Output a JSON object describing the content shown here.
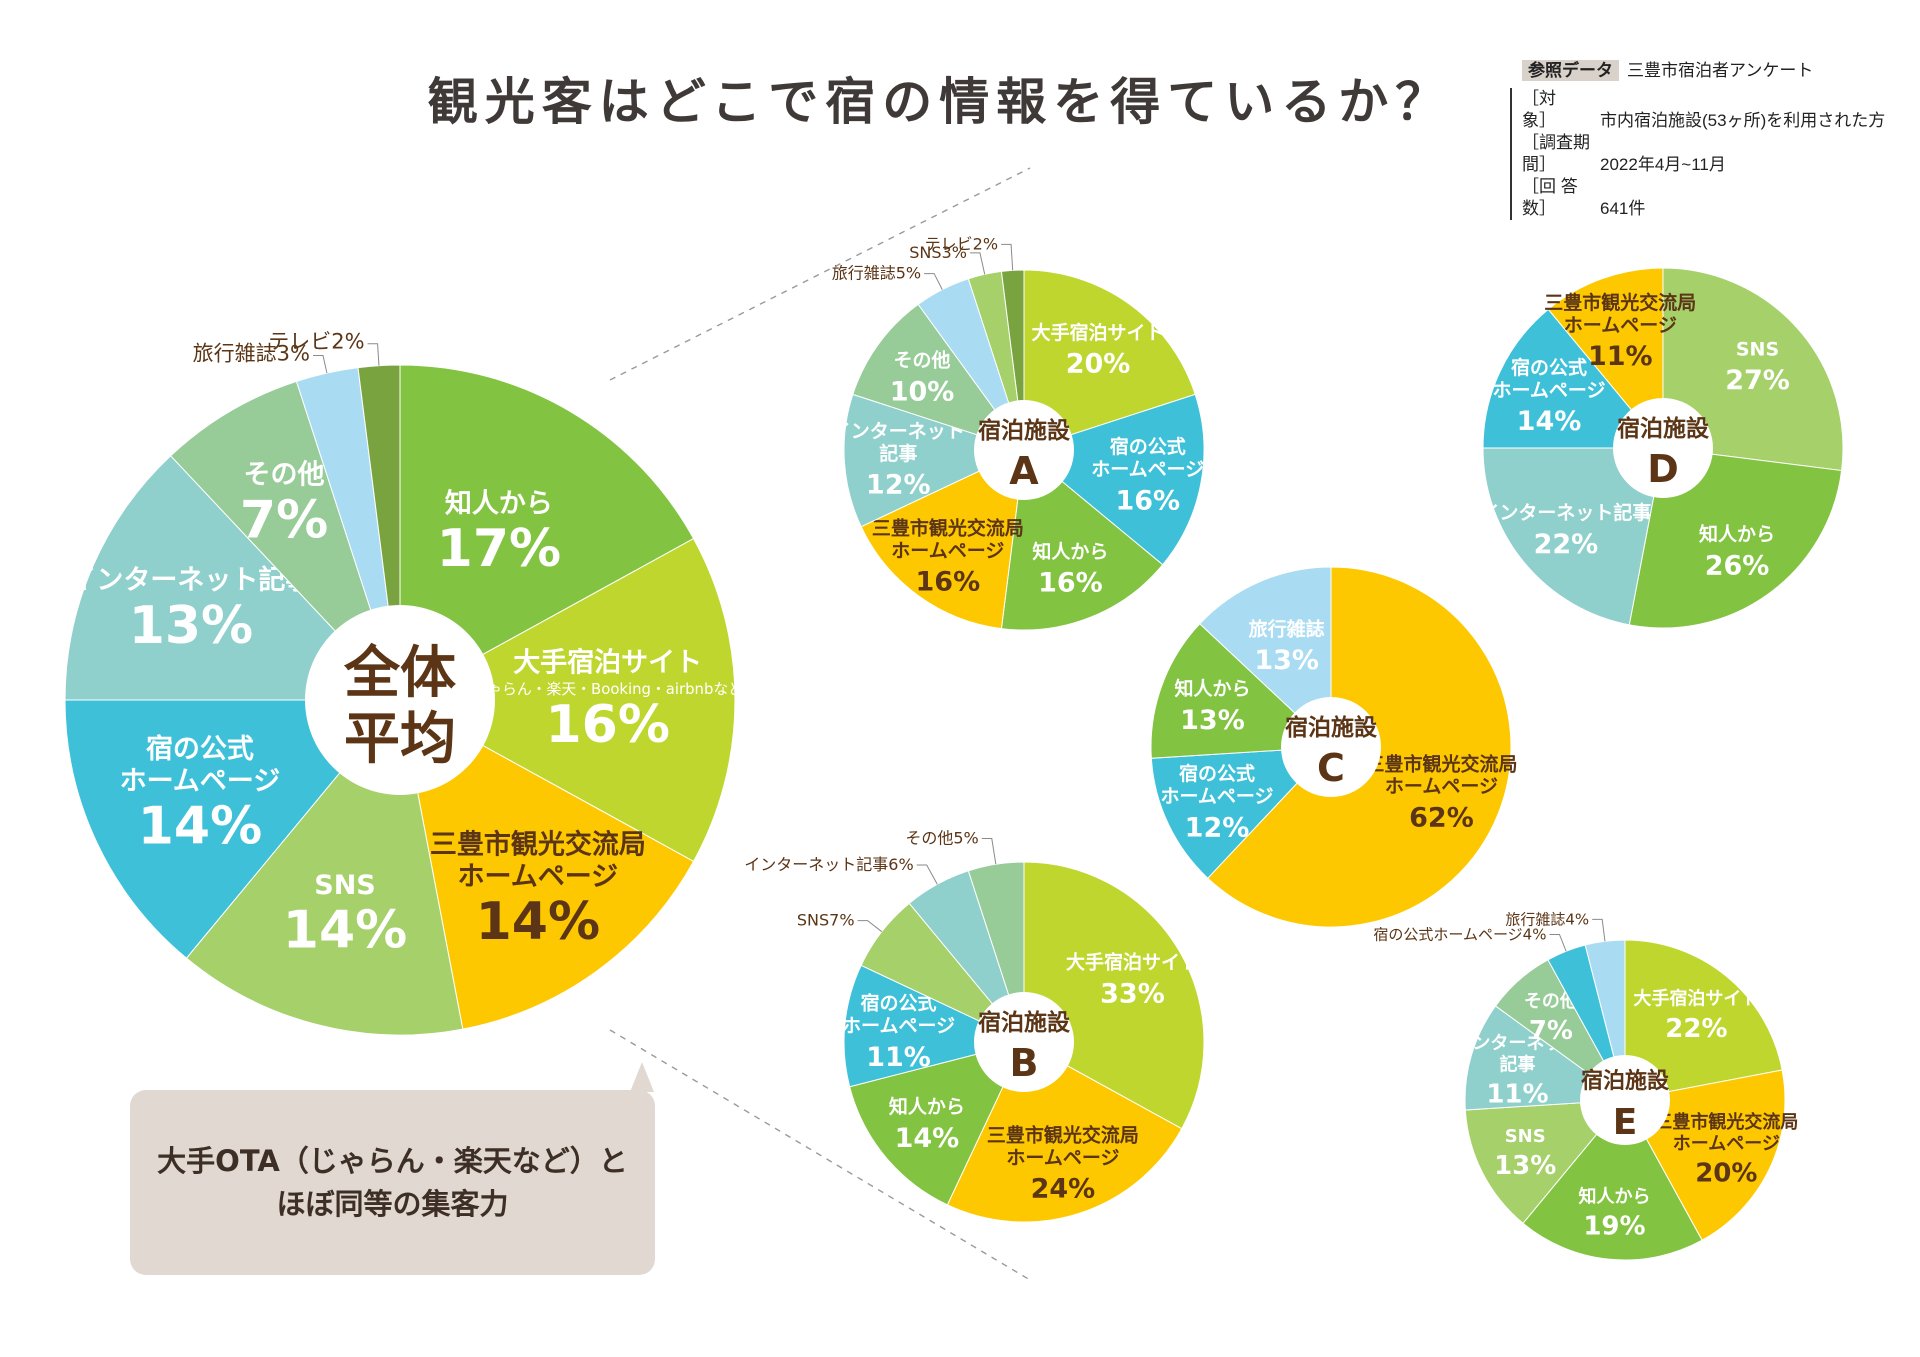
{
  "title": "観光客はどこで宿の情報を得ているか？",
  "source": {
    "tag": "参照データ",
    "name": "三豊市宿泊者アンケート",
    "rows": [
      {
        "label": "［対　　象］",
        "value": "市内宿泊施設(53ヶ所)を利用された方"
      },
      {
        "label": "［調査期間］",
        "value": "2022年4月~11月"
      },
      {
        "label": "［回 答 数］",
        "value": "641件"
      }
    ]
  },
  "callout": {
    "line1": "大手OTA（じゃらん・楽天など）と",
    "line2": "ほぼ同等の集客力"
  },
  "colors": {
    "知人から": "#82c341",
    "大手宿泊サイト": "#bfd62f",
    "三豊市観光交流局ホームページ": "#fdc800",
    "SNS": "#a5d06a",
    "宿の公式ホームページ": "#3ec1d8",
    "インターネット記事": "#8fd0cc",
    "その他": "#97cc98",
    "旅行雑誌": "#a9dcf2",
    "テレビ": "#79a33f"
  },
  "chart_data": [
    {
      "type": "pie",
      "id": "overall",
      "center_label": [
        "全体",
        "平均"
      ],
      "slices": [
        {
          "key": "知人から",
          "label": [
            "知人から"
          ],
          "value": 17
        },
        {
          "key": "大手宿泊サイト",
          "label": [
            "大手宿泊サイト"
          ],
          "sub": "じゃらん・楽天・Booking・airbnbなど",
          "value": 16
        },
        {
          "key": "三豊市観光交流局ホームページ",
          "label": [
            "三豊市観光交流局",
            "ホームページ"
          ],
          "value": 14
        },
        {
          "key": "SNS",
          "label": [
            "SNS"
          ],
          "value": 14
        },
        {
          "key": "宿の公式ホームページ",
          "label": [
            "宿の公式",
            "ホームページ"
          ],
          "value": 14
        },
        {
          "key": "インターネット記事",
          "label": [
            "インターネット記事"
          ],
          "value": 13
        },
        {
          "key": "その他",
          "label": [
            "その他"
          ],
          "value": 7
        },
        {
          "key": "旅行雑誌",
          "label": [
            "旅行雑誌"
          ],
          "value": 3
        },
        {
          "key": "テレビ",
          "label": [
            "テレビ"
          ],
          "value": 2
        }
      ]
    },
    {
      "type": "pie",
      "id": "A",
      "center_label": [
        "宿泊施設",
        "A"
      ],
      "slices": [
        {
          "key": "大手宿泊サイト",
          "label": [
            "大手宿泊サイト"
          ],
          "value": 20
        },
        {
          "key": "宿の公式ホームページ",
          "label": [
            "宿の公式",
            "ホームページ"
          ],
          "value": 16
        },
        {
          "key": "知人から",
          "label": [
            "知人から"
          ],
          "value": 16
        },
        {
          "key": "三豊市観光交流局ホームページ",
          "label": [
            "三豊市観光交流局",
            "ホームページ"
          ],
          "value": 16
        },
        {
          "key": "インターネット記事",
          "label": [
            "インターネット",
            "記事"
          ],
          "value": 12
        },
        {
          "key": "その他",
          "label": [
            "その他"
          ],
          "value": 10
        },
        {
          "key": "旅行雑誌",
          "label": [
            "旅行雑誌"
          ],
          "value": 5
        },
        {
          "key": "SNS",
          "label": [
            "SNS"
          ],
          "value": 3
        },
        {
          "key": "テレビ",
          "label": [
            "テレビ"
          ],
          "value": 2
        }
      ]
    },
    {
      "type": "pie",
      "id": "B",
      "center_label": [
        "宿泊施設",
        "B"
      ],
      "slices": [
        {
          "key": "大手宿泊サイト",
          "label": [
            "大手宿泊サイト"
          ],
          "value": 33
        },
        {
          "key": "三豊市観光交流局ホームページ",
          "label": [
            "三豊市観光交流局",
            "ホームページ"
          ],
          "value": 24
        },
        {
          "key": "知人から",
          "label": [
            "知人から"
          ],
          "value": 14
        },
        {
          "key": "宿の公式ホームページ",
          "label": [
            "宿の公式",
            "ホームページ"
          ],
          "value": 11
        },
        {
          "key": "SNS",
          "label": [
            "SNS"
          ],
          "value": 7
        },
        {
          "key": "インターネット記事",
          "label": [
            "インターネット記事"
          ],
          "value": 6
        },
        {
          "key": "その他",
          "label": [
            "その他"
          ],
          "value": 5
        }
      ]
    },
    {
      "type": "pie",
      "id": "C",
      "center_label": [
        "宿泊施設",
        "C"
      ],
      "slices": [
        {
          "key": "三豊市観光交流局ホームページ",
          "label": [
            "三豊市観光交流局",
            "ホームページ"
          ],
          "value": 62
        },
        {
          "key": "宿の公式ホームページ",
          "label": [
            "宿の公式",
            "ホームページ"
          ],
          "value": 12
        },
        {
          "key": "知人から",
          "label": [
            "知人から"
          ],
          "value": 13
        },
        {
          "key": "旅行雑誌",
          "label": [
            "旅行雑誌"
          ],
          "value": 13
        }
      ]
    },
    {
      "type": "pie",
      "id": "D",
      "center_label": [
        "宿泊施設",
        "D"
      ],
      "slices": [
        {
          "key": "SNS",
          "label": [
            "SNS"
          ],
          "value": 27
        },
        {
          "key": "知人から",
          "label": [
            "知人から"
          ],
          "value": 26
        },
        {
          "key": "インターネット記事",
          "label": [
            "インターネット記事"
          ],
          "value": 22
        },
        {
          "key": "宿の公式ホームページ",
          "label": [
            "宿の公式",
            "ホームページ"
          ],
          "value": 14
        },
        {
          "key": "三豊市観光交流局ホームページ",
          "label": [
            "三豊市観光交流局",
            "ホームページ"
          ],
          "value": 11
        }
      ]
    },
    {
      "type": "pie",
      "id": "E",
      "center_label": [
        "宿泊施設",
        "E"
      ],
      "slices": [
        {
          "key": "大手宿泊サイト",
          "label": [
            "大手宿泊サイト"
          ],
          "value": 22
        },
        {
          "key": "三豊市観光交流局ホームページ",
          "label": [
            "三豊市観光交流局",
            "ホームページ"
          ],
          "value": 20
        },
        {
          "key": "知人から",
          "label": [
            "知人から"
          ],
          "value": 19
        },
        {
          "key": "SNS",
          "label": [
            "SNS"
          ],
          "value": 13
        },
        {
          "key": "インターネット記事",
          "label": [
            "インターネット",
            "記事"
          ],
          "value": 11
        },
        {
          "key": "その他",
          "label": [
            "その他"
          ],
          "value": 7
        },
        {
          "key": "宿の公式ホームページ",
          "label": [
            "宿の公式ホームページ"
          ],
          "value": 4
        },
        {
          "key": "旅行雑誌",
          "label": [
            "旅行雑誌"
          ],
          "value": 4
        }
      ]
    }
  ]
}
